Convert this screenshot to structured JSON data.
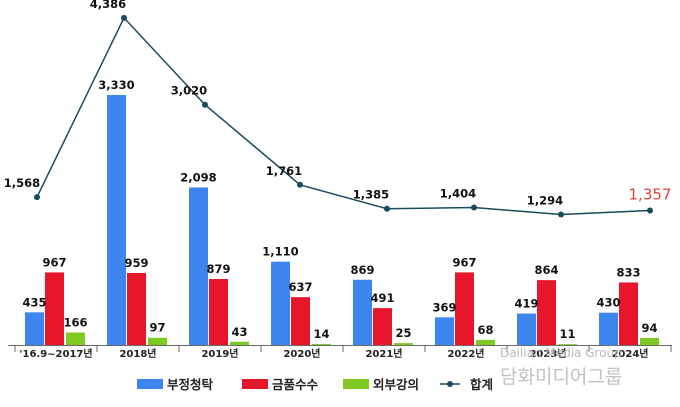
{
  "chart_data": {
    "type": "bar",
    "categories": [
      "'16.9~2017년",
      "2018년",
      "2019년",
      "2020년",
      "2021년",
      "2022년",
      "2023년",
      "2024년"
    ],
    "series": [
      {
        "name": "부정청탁",
        "type": "bar",
        "color": "#3d85ef",
        "values": [
          435,
          3330,
          2098,
          1110,
          869,
          369,
          419,
          430
        ]
      },
      {
        "name": "금품수수",
        "type": "bar",
        "color": "#e8162a",
        "values": [
          967,
          959,
          879,
          637,
          491,
          967,
          864,
          833
        ]
      },
      {
        "name": "외부강의",
        "type": "bar",
        "color": "#7ec924",
        "values": [
          166,
          97,
          43,
          14,
          25,
          68,
          11,
          94
        ]
      },
      {
        "name": "합계",
        "type": "line",
        "color": "#1a4a5e",
        "values": [
          1568,
          4386,
          3020,
          1761,
          1385,
          1404,
          1294,
          1357
        ]
      }
    ],
    "highlight": {
      "series": "합계",
      "index": 7,
      "color": "#e0433d"
    },
    "legend_position": "bottom",
    "grid": false
  },
  "watermark": {
    "en": "Dailian Media Group",
    "ko": "담화미디어그룹"
  }
}
